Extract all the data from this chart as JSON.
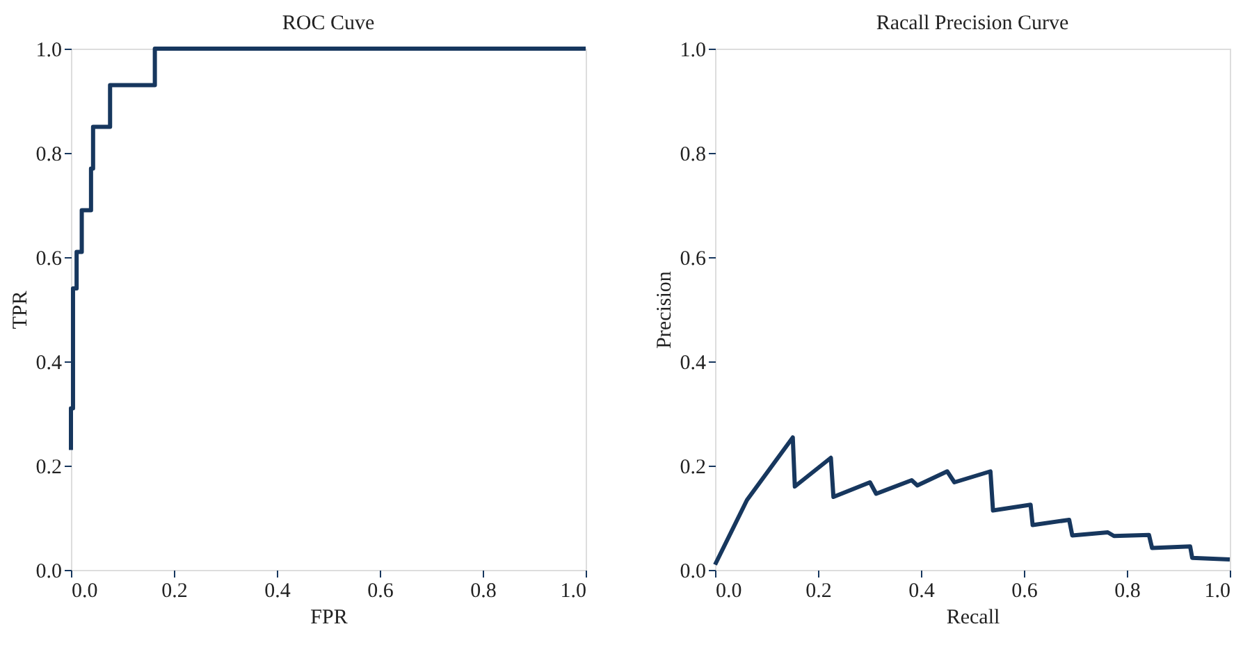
{
  "chart_data": [
    {
      "type": "line",
      "title": "ROC Cuve",
      "xlabel": "FPR",
      "ylabel": "TPR",
      "xlim": [
        0,
        1
      ],
      "ylim": [
        0,
        1
      ],
      "grid": false,
      "legend": false,
      "marker": "none",
      "line_style": "solid",
      "xticks": [
        {
          "value": 0,
          "label": "0.0"
        },
        {
          "value": 0.2,
          "label": "0.2"
        },
        {
          "value": 0.4,
          "label": "0.4"
        },
        {
          "value": 0.6,
          "label": "0.6"
        },
        {
          "value": 0.8,
          "label": "0.8"
        },
        {
          "value": 1,
          "label": "1.0"
        }
      ],
      "yticks": [
        {
          "value": 0,
          "label": "0.0"
        },
        {
          "value": 0.2,
          "label": "0.2"
        },
        {
          "value": 0.4,
          "label": "0.4"
        },
        {
          "value": 0.6,
          "label": "0.6"
        },
        {
          "value": 0.8,
          "label": "0.8"
        },
        {
          "value": 1,
          "label": "1.0"
        }
      ],
      "series": [
        {
          "color": "#17375e",
          "x": [
            0,
            0,
            0.004,
            0.004,
            0.011,
            0.011,
            0.021,
            0.021,
            0.039,
            0.039,
            0.043,
            0.043,
            0.076,
            0.076,
            0.163,
            0.163,
            1.0
          ],
          "values": [
            0.23,
            0.31,
            0.31,
            0.54,
            0.54,
            0.61,
            0.61,
            0.69,
            0.69,
            0.77,
            0.77,
            0.85,
            0.85,
            0.93,
            0.93,
            1.0,
            1.0
          ]
        }
      ]
    },
    {
      "type": "line",
      "title": "Racall Precision Curve",
      "xlabel": "Recall",
      "ylabel": "Precision",
      "xlim": [
        0,
        1
      ],
      "ylim": [
        0,
        1
      ],
      "grid": false,
      "legend": false,
      "marker": "none",
      "line_style": "solid",
      "xticks": [
        {
          "value": 0,
          "label": "0.0"
        },
        {
          "value": 0.2,
          "label": "0.2"
        },
        {
          "value": 0.4,
          "label": "0.4"
        },
        {
          "value": 0.6,
          "label": "0.6"
        },
        {
          "value": 0.8,
          "label": "0.8"
        },
        {
          "value": 1,
          "label": "1.0"
        }
      ],
      "yticks": [
        {
          "value": 0,
          "label": "0.0"
        },
        {
          "value": 0.2,
          "label": "0.2"
        },
        {
          "value": 0.4,
          "label": "0.4"
        },
        {
          "value": 0.6,
          "label": "0.6"
        },
        {
          "value": 0.8,
          "label": "0.8"
        },
        {
          "value": 1,
          "label": "1.0"
        }
      ],
      "series": [
        {
          "color": "#17375e",
          "x": [
            0,
            0.062,
            0.151,
            0.155,
            0.225,
            0.23,
            0.301,
            0.313,
            0.382,
            0.393,
            0.451,
            0.465,
            0.535,
            0.54,
            0.613,
            0.617,
            0.688,
            0.694,
            0.763,
            0.775,
            0.843,
            0.849,
            0.923,
            0.927,
            1.0
          ],
          "values": [
            0.01,
            0.134,
            0.254,
            0.16,
            0.215,
            0.14,
            0.168,
            0.146,
            0.172,
            0.162,
            0.189,
            0.168,
            0.189,
            0.114,
            0.125,
            0.086,
            0.096,
            0.066,
            0.072,
            0.065,
            0.067,
            0.042,
            0.045,
            0.023,
            0.02
          ]
        }
      ]
    }
  ]
}
